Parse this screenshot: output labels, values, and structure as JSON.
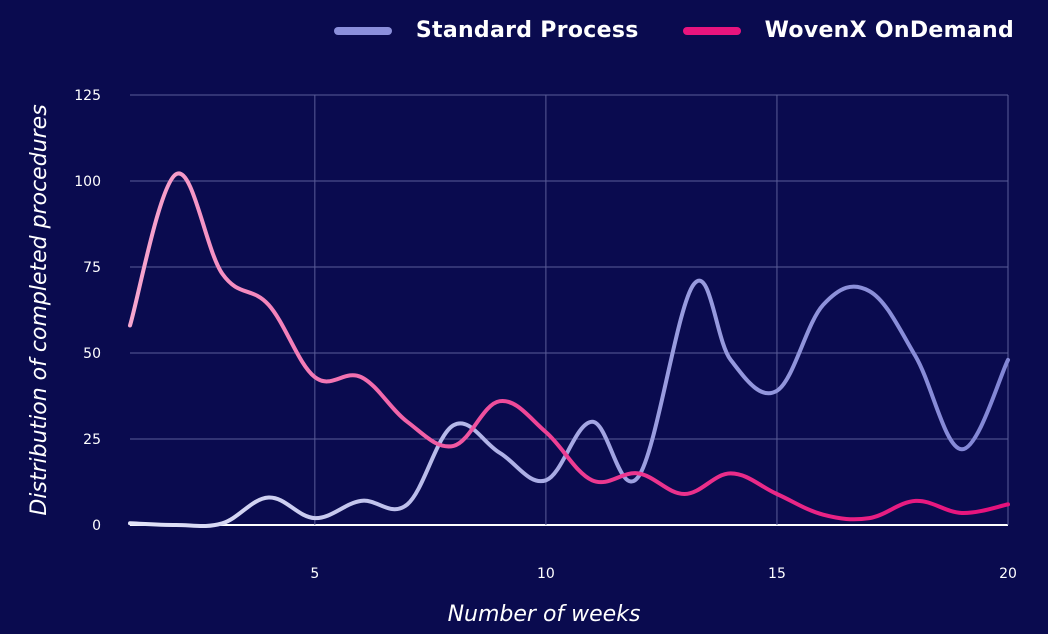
{
  "chart_data": {
    "type": "line",
    "xlabel": "Number of weeks",
    "ylabel": "Distribution of completed procedures",
    "xlim": [
      1,
      20
    ],
    "ylim": [
      0,
      125
    ],
    "xticks": [
      5,
      10,
      15,
      20
    ],
    "yticks": [
      0,
      25,
      50,
      75,
      100,
      125
    ],
    "grid": true,
    "legend_position": "top-right",
    "series": [
      {
        "name": "Standard Process",
        "color": "#8b8fdb",
        "x": [
          1,
          2,
          3,
          4,
          5,
          6,
          7,
          8,
          9,
          10,
          11,
          12,
          13.2,
          14,
          15,
          16,
          17,
          18,
          19,
          20
        ],
        "y": [
          0.5,
          0,
          0.5,
          8,
          2,
          7,
          6,
          29,
          21,
          13,
          30,
          14,
          70,
          48,
          39,
          64,
          68,
          49,
          22,
          48
        ]
      },
      {
        "name": "WovenX OnDemand",
        "color": "#e8147e",
        "x": [
          1,
          2,
          3,
          4,
          5,
          6,
          7,
          8,
          9,
          10,
          11,
          12,
          13,
          14,
          15,
          16,
          17,
          18,
          19,
          20
        ],
        "y": [
          58,
          102,
          73,
          64,
          43,
          43,
          30,
          23,
          36,
          27,
          13,
          15,
          9,
          15,
          9,
          3,
          2,
          7,
          3.5,
          6
        ]
      }
    ]
  }
}
